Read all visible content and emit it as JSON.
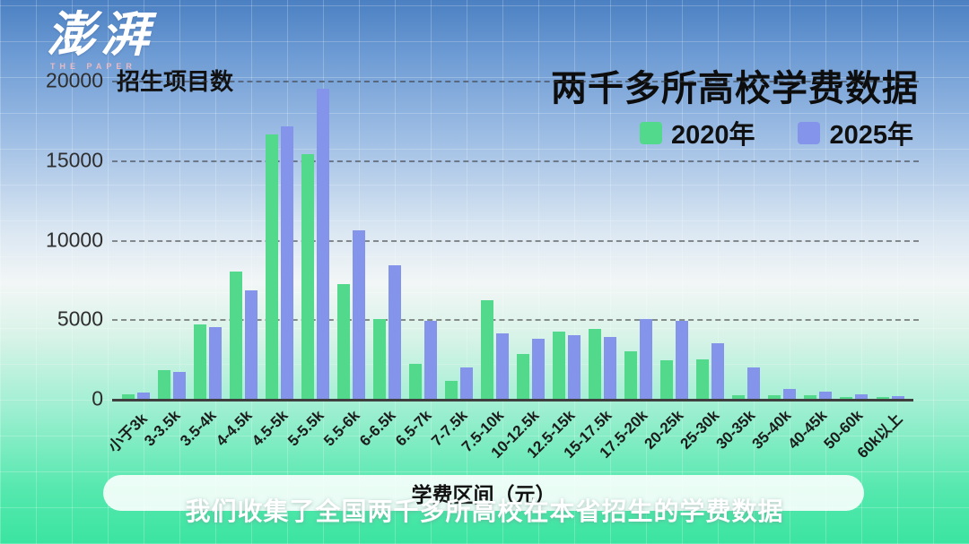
{
  "logo": {
    "name": "澎湃",
    "subtitle": "THE PAPER"
  },
  "header": {
    "title": "两千多所高校学费数据"
  },
  "legend": [
    {
      "label": "2020年",
      "color": "#52d98c"
    },
    {
      "label": "2025年",
      "color": "#8494ea"
    }
  ],
  "y_axis": {
    "title": "招生项目数",
    "ticks": [
      "20000",
      "15000",
      "10000",
      "5000",
      "0"
    ]
  },
  "x_axis": {
    "title": "学费区间（元）"
  },
  "caption": "我们收集了全国两千多所高校在本省招生的学费数据",
  "chart_data": {
    "type": "bar",
    "title": "两千多所高校学费数据",
    "xlabel": "学费区间（元）",
    "ylabel": "招生项目数",
    "ylim": [
      0,
      20000
    ],
    "ytick_step": 5000,
    "grid": true,
    "legend_position": "top-right",
    "categories": [
      "小于3k",
      "3-3.5k",
      "3.5-4k",
      "4-4.5k",
      "4.5-5k",
      "5-5.5k",
      "5.5-6k",
      "6-6.5k",
      "6.5-7k",
      "7-7.5k",
      "7.5-10k",
      "10-12.5k",
      "12.5-15k",
      "15-17.5k",
      "17.5-20k",
      "20-25k",
      "25-30k",
      "30-35k",
      "35-40k",
      "40-45k",
      "50-60k",
      "60k以上"
    ],
    "series": [
      {
        "name": "2020年",
        "color": "#52d98c",
        "values": [
          300,
          1800,
          4700,
          8000,
          16600,
          15400,
          7200,
          5000,
          2200,
          1100,
          6200,
          2800,
          4200,
          4400,
          3000,
          2400,
          2500,
          250,
          250,
          250,
          130,
          100
        ]
      },
      {
        "name": "2025年",
        "color": "#8494ea",
        "values": [
          400,
          1700,
          4500,
          6800,
          17100,
          19500,
          10600,
          8400,
          4900,
          2000,
          4100,
          3800,
          4000,
          3900,
          5000,
          4900,
          3500,
          2000,
          620,
          470,
          280,
          180
        ]
      }
    ]
  }
}
